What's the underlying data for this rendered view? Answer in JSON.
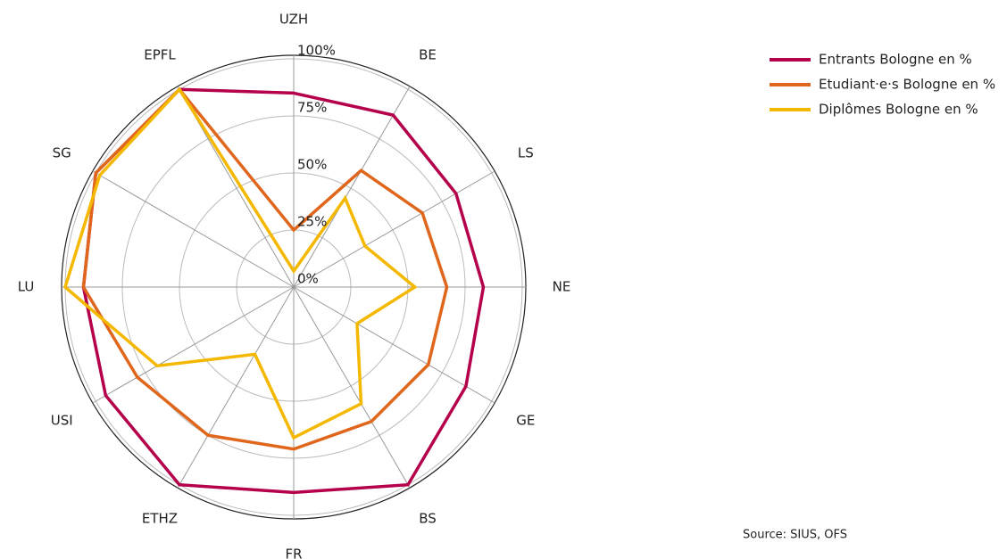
{
  "chart_data": {
    "type": "radar",
    "categories": [
      "UZH",
      "BE",
      "LS",
      "NE",
      "GE",
      "BS",
      "FR",
      "ETHZ",
      "USI",
      "LU",
      "SG",
      "EPFL"
    ],
    "series": [
      {
        "name": "Entrants Bologne en %",
        "color": "#b5004b",
        "values": [
          85,
          87,
          82,
          83,
          87,
          100,
          90,
          100,
          95,
          92,
          100,
          100
        ]
      },
      {
        "name": "Etudiant·e·s Bologne en %",
        "color": "#e0661c",
        "values": [
          25,
          59,
          65,
          67,
          68,
          68,
          71,
          75,
          79,
          92,
          100,
          100
        ]
      },
      {
        "name": "Diplômes Bologne en %",
        "color": "#f5b800",
        "values": [
          7,
          45,
          36,
          53,
          32,
          59,
          66,
          34,
          69,
          100,
          98,
          100
        ]
      }
    ],
    "rlim": [
      0,
      100
    ],
    "rticks": [
      {
        "value": 0,
        "label": "0%"
      },
      {
        "value": 25,
        "label": "25%"
      },
      {
        "value": 50,
        "label": "50%"
      },
      {
        "value": 75,
        "label": "75%"
      },
      {
        "value": 100,
        "label": "100%"
      }
    ],
    "grid": true,
    "legend": "top-right",
    "source": "Source: SIUS, OFS"
  }
}
